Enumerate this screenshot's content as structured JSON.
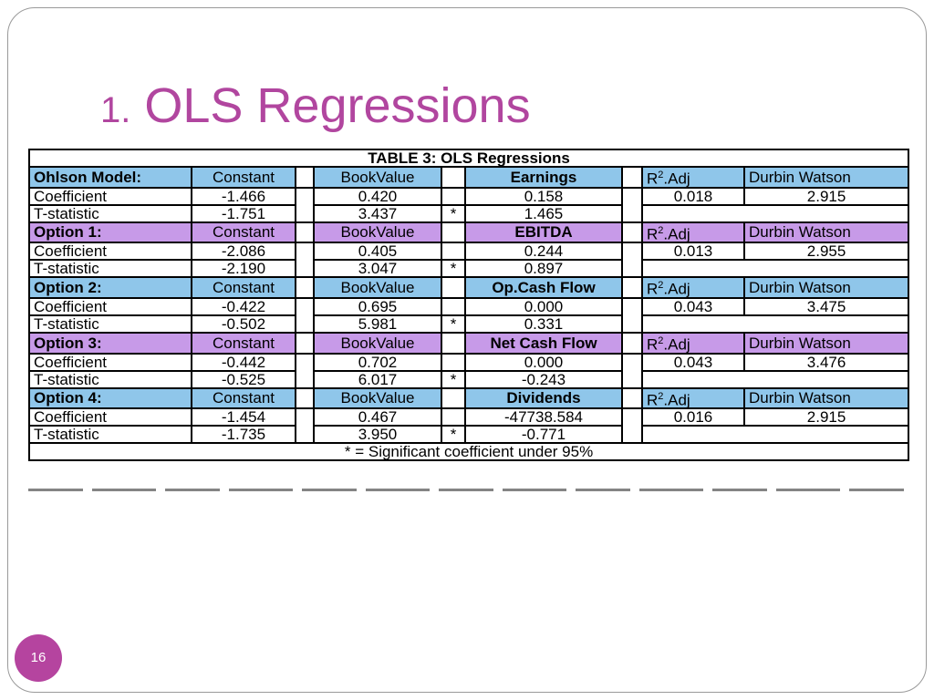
{
  "slide": {
    "title_number": "1.",
    "title_text": "OLS Regressions",
    "page_number": "16"
  },
  "table": {
    "caption": "TABLE 3: OLS Regressions",
    "row_labels": {
      "coefficient": "Coefficient",
      "tstat": "T-statistic"
    },
    "col_headers": {
      "constant": "Constant",
      "bookvalue": "BookValue",
      "r2_main": "R",
      "r2_sup": "2",
      "r2_tail": ".Adj",
      "dw": "Durbin Watson"
    },
    "significance_marker": "*",
    "footnote": "* = Significant coefficient under 95%",
    "models": [
      {
        "name": "Ohlson Model:",
        "var": "Earnings",
        "coef": {
          "constant": "-1.466",
          "bookvalue": "0.420",
          "var": "0.158",
          "r2": "0.018",
          "dw": "2.915"
        },
        "tstat": {
          "constant": "-1.751",
          "bookvalue": "3.437",
          "var": "1.465"
        }
      },
      {
        "name": "Option 1:",
        "var": "EBITDA",
        "coef": {
          "constant": "-2.086",
          "bookvalue": "0.405",
          "var": "0.244",
          "r2": "0.013",
          "dw": "2.955"
        },
        "tstat": {
          "constant": "-2.190",
          "bookvalue": "3.047",
          "var": "0.897"
        }
      },
      {
        "name": "Option 2:",
        "var": "Op.Cash Flow",
        "coef": {
          "constant": "-0.422",
          "bookvalue": "0.695",
          "var": "0.000",
          "r2": "0.043",
          "dw": "3.475"
        },
        "tstat": {
          "constant": "-0.502",
          "bookvalue": "5.981",
          "var": "0.331"
        }
      },
      {
        "name": "Option 3:",
        "var": "Net Cash Flow",
        "coef": {
          "constant": "-0.442",
          "bookvalue": "0.702",
          "var": "0.000",
          "r2": "0.043",
          "dw": "3.476"
        },
        "tstat": {
          "constant": "-0.525",
          "bookvalue": "6.017",
          "var": "-0.243"
        }
      },
      {
        "name": "Option 4:",
        "var": "Dividends",
        "coef": {
          "constant": "-1.454",
          "bookvalue": "0.467",
          "var": "-47738.584",
          "r2": "0.016",
          "dw": "2.915"
        },
        "tstat": {
          "constant": "-1.735",
          "bookvalue": "3.950",
          "var": "-0.771"
        }
      }
    ]
  },
  "colors": {
    "title": "#b1469f",
    "header_blue": "#8fc6ea",
    "header_purple": "#c79ae8",
    "badge": "#b5449f"
  }
}
